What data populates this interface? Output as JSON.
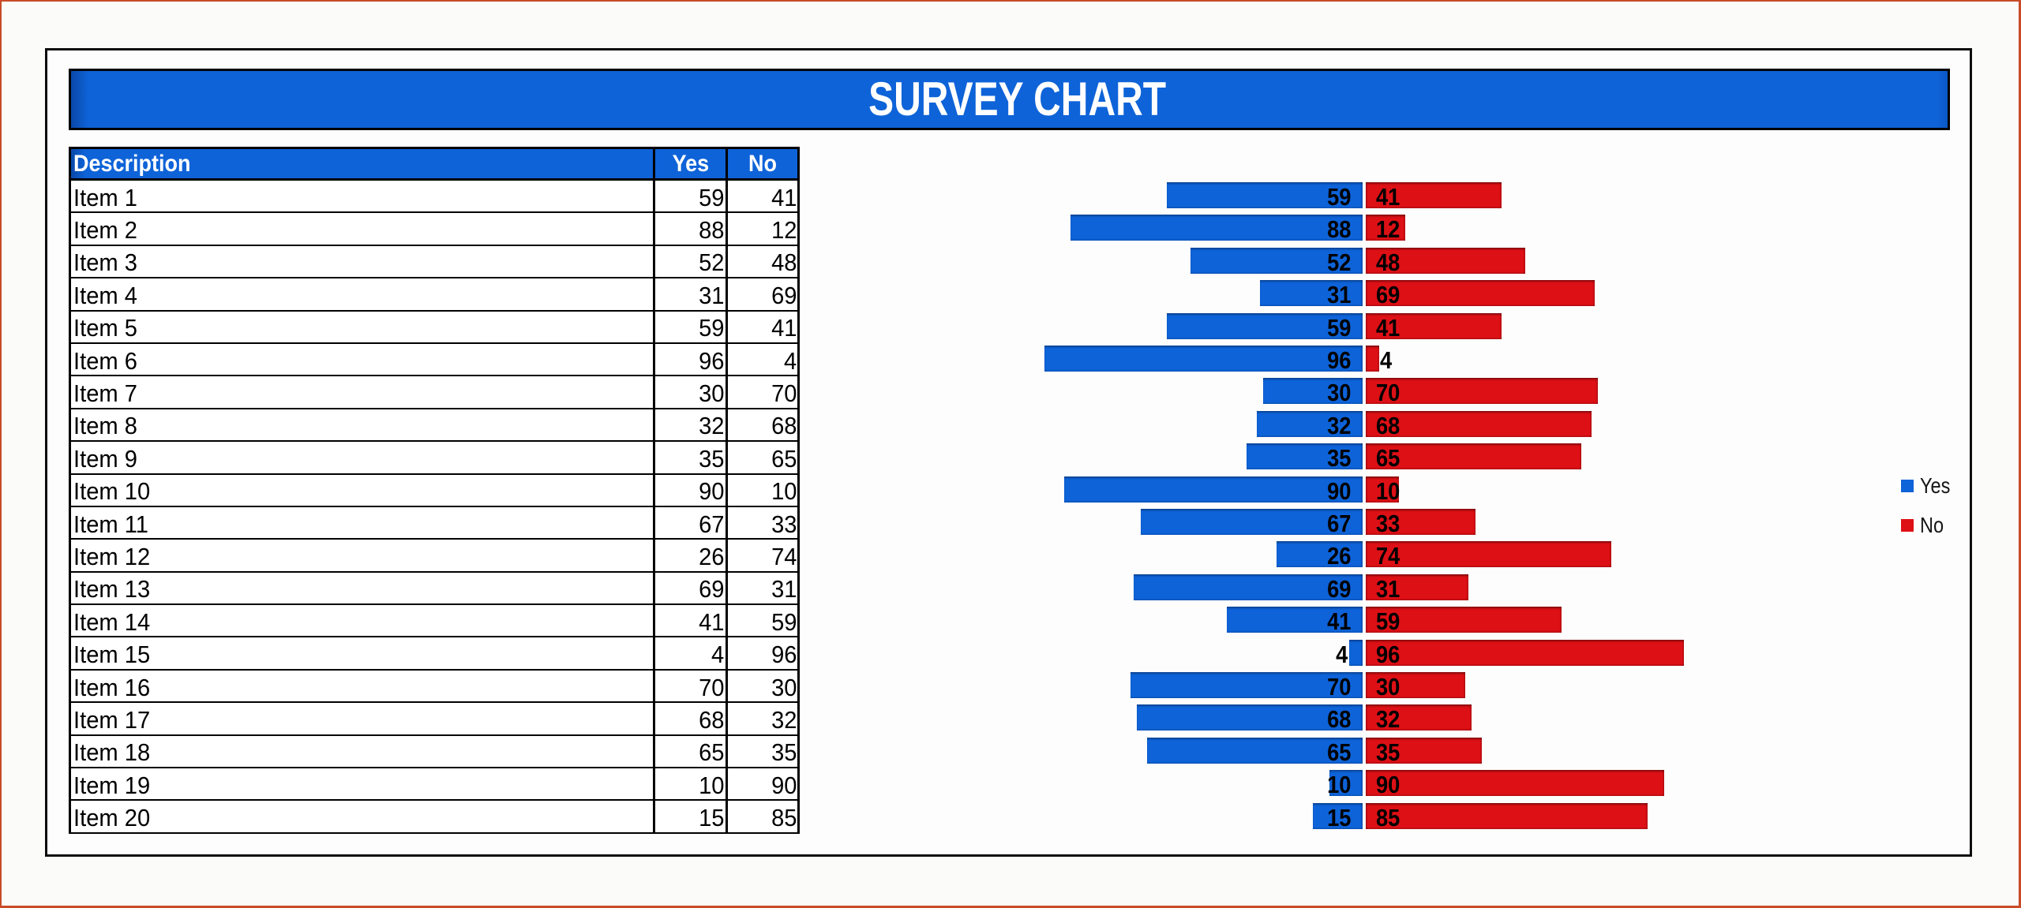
{
  "page": {
    "frame_color": "#c94b28",
    "background": "#fbfbfa",
    "sheet_background": "#fdfdfd",
    "border_color": "#000000"
  },
  "banner": {
    "title": "SURVEY CHART",
    "background": "#0e63d8",
    "text_color": "#ffffff"
  },
  "table": {
    "header_background": "#0e63d8",
    "header_text_color": "#ffffff",
    "headers": {
      "description": "Description",
      "yes": "Yes",
      "no": "No"
    },
    "rows": [
      {
        "label": "Item 1",
        "yes": 59,
        "no": 41
      },
      {
        "label": "Item 2",
        "yes": 88,
        "no": 12
      },
      {
        "label": "Item 3",
        "yes": 52,
        "no": 48
      },
      {
        "label": "Item 4",
        "yes": 31,
        "no": 69
      },
      {
        "label": "Item 5",
        "yes": 59,
        "no": 41
      },
      {
        "label": "Item 6",
        "yes": 96,
        "no": 4
      },
      {
        "label": "Item 7",
        "yes": 30,
        "no": 70
      },
      {
        "label": "Item 8",
        "yes": 32,
        "no": 68
      },
      {
        "label": "Item 9",
        "yes": 35,
        "no": 65
      },
      {
        "label": "Item 10",
        "yes": 90,
        "no": 10
      },
      {
        "label": "Item 11",
        "yes": 67,
        "no": 33
      },
      {
        "label": "Item 12",
        "yes": 26,
        "no": 74
      },
      {
        "label": "Item 13",
        "yes": 69,
        "no": 31
      },
      {
        "label": "Item 14",
        "yes": 41,
        "no": 59
      },
      {
        "label": "Item 15",
        "yes": 4,
        "no": 96
      },
      {
        "label": "Item 16",
        "yes": 70,
        "no": 30
      },
      {
        "label": "Item 17",
        "yes": 68,
        "no": 32
      },
      {
        "label": "Item 18",
        "yes": 65,
        "no": 35
      },
      {
        "label": "Item 19",
        "yes": 10,
        "no": 90
      },
      {
        "label": "Item 20",
        "yes": 15,
        "no": 85
      }
    ]
  },
  "legend": {
    "yes_label": "Yes",
    "no_label": "No",
    "yes_color": "#0e63d8",
    "no_color": "#dd1016"
  },
  "chart_data": {
    "type": "bar",
    "subtype": "diverging-horizontal",
    "title": "SURVEY CHART",
    "categories": [
      "Item 1",
      "Item 2",
      "Item 3",
      "Item 4",
      "Item 5",
      "Item 6",
      "Item 7",
      "Item 8",
      "Item 9",
      "Item 10",
      "Item 11",
      "Item 12",
      "Item 13",
      "Item 14",
      "Item 15",
      "Item 16",
      "Item 17",
      "Item 18",
      "Item 19",
      "Item 20"
    ],
    "series": [
      {
        "name": "Yes",
        "color": "#0e63d8",
        "direction": "left",
        "values": [
          59,
          88,
          52,
          31,
          59,
          96,
          30,
          32,
          35,
          90,
          67,
          26,
          69,
          41,
          4,
          70,
          68,
          65,
          10,
          15
        ]
      },
      {
        "name": "No",
        "color": "#dd1016",
        "direction": "right",
        "values": [
          41,
          12,
          48,
          69,
          41,
          4,
          70,
          68,
          65,
          10,
          33,
          74,
          31,
          59,
          96,
          30,
          32,
          35,
          90,
          85
        ]
      }
    ],
    "value_range": [
      0,
      100
    ],
    "data_labels": true,
    "legend_position": "right",
    "grid": false,
    "axes_visible": false
  }
}
